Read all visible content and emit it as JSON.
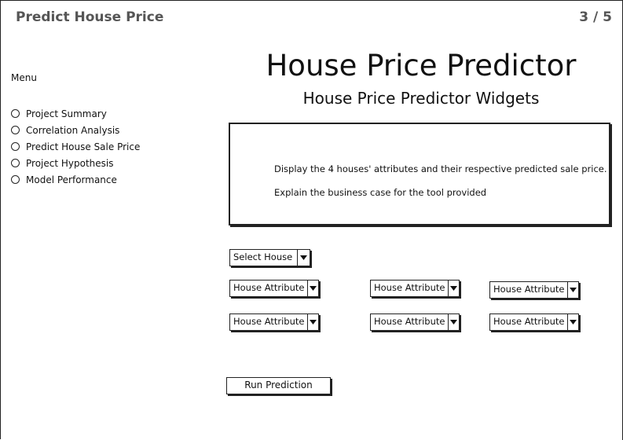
{
  "header": {
    "app_title": "Predict House Price",
    "page_counter": "3 / 5"
  },
  "sidebar": {
    "menu_heading": "Menu",
    "items": [
      {
        "label": "Project Summary"
      },
      {
        "label": "Correlation Analysis"
      },
      {
        "label": "Predict House Sale Price"
      },
      {
        "label": "Project Hypothesis"
      },
      {
        "label": "Model Performance"
      }
    ]
  },
  "main": {
    "title": "House Price Predictor",
    "subtitle": "House Price Predictor Widgets",
    "info": {
      "line1": "Display the 4 houses' attributes and their respective predicted sale price.",
      "line2": "Explain the business case for the tool provided"
    },
    "select_house": {
      "label": "Select House",
      "icon": "chevron-down-icon"
    },
    "attributes": [
      {
        "label": "House Attribute"
      },
      {
        "label": "House Attribute"
      },
      {
        "label": "House Attribute"
      },
      {
        "label": "House Attribute"
      },
      {
        "label": "House Attribute"
      },
      {
        "label": "House Attribute"
      }
    ],
    "run_button": "Run Prediction"
  }
}
